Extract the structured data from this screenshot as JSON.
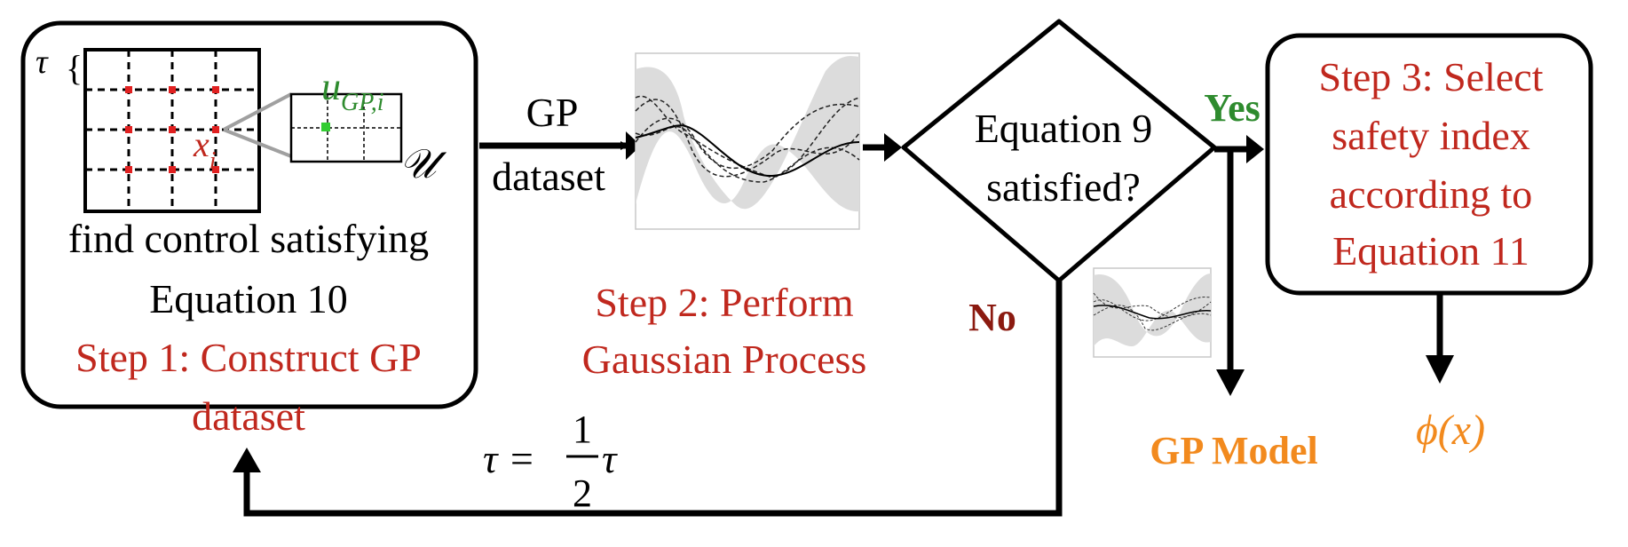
{
  "step1": {
    "tau_symbol": "τ",
    "brace": "{",
    "u_label_main": "u",
    "u_label_sub": "GP,i",
    "x_label_main": "x",
    "x_label_sub": "i",
    "set_symbol": "𝒰",
    "desc_line1": "find control satisfying",
    "desc_line2": "Equation 10",
    "title_line1": "Step 1: Construct GP",
    "title_line2": "dataset"
  },
  "arrow1": {
    "line1": "GP",
    "line2": "dataset"
  },
  "step2": {
    "title_line1": "Step 2: Perform",
    "title_line2": "Gaussian Process"
  },
  "decision": {
    "line1": "Equation 9",
    "line2": "satisfied?",
    "yes": "Yes",
    "no": "No"
  },
  "step3": {
    "line1": "Step 3: Select",
    "line2": "safety index",
    "line3": "according to",
    "line4": "Equation 11"
  },
  "outputs": {
    "gp_model": "GP Model",
    "phi": "ϕ(x)"
  },
  "feedback": {
    "lhs": "τ = ",
    "num": "1",
    "den": "2",
    "rhs": "τ"
  },
  "colors": {
    "step_red": "#c0281e",
    "yes_green": "#2e8b2e",
    "no_dark_red": "#8b1a10",
    "output_orange": "#f28a1e",
    "grid_dot_red": "#e02020",
    "grid_dot_green": "#33cc33"
  }
}
